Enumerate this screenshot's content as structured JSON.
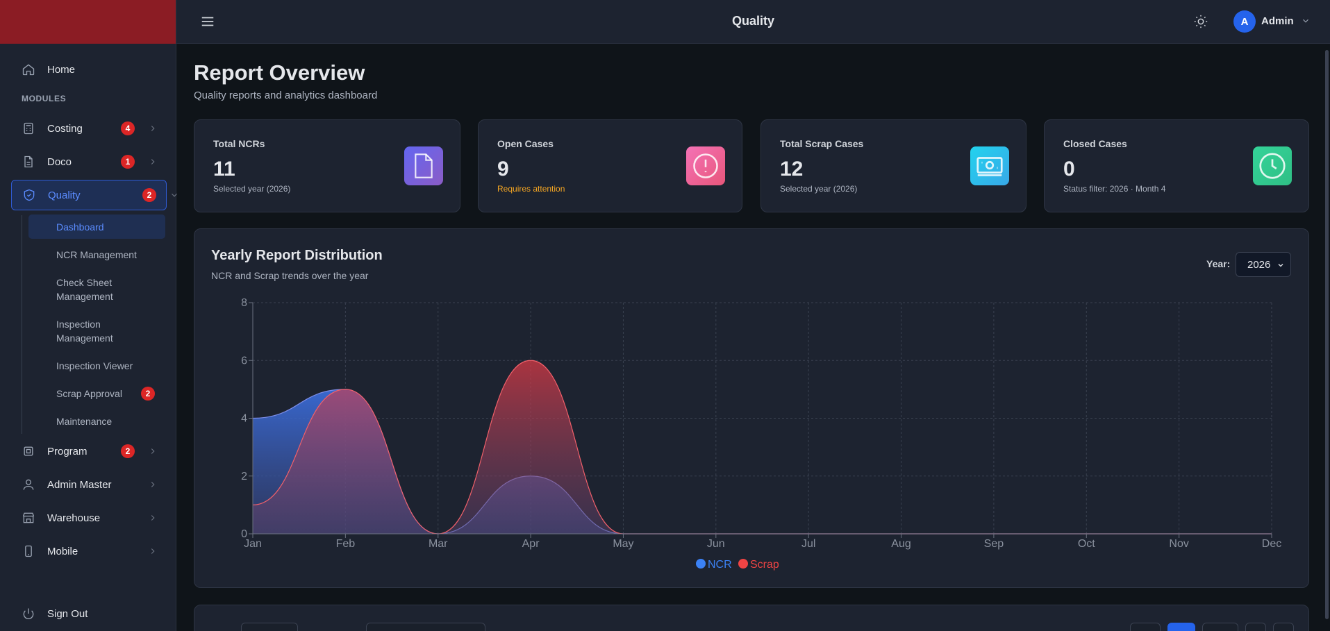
{
  "header": {
    "title": "Quality",
    "user_initial": "A",
    "user_name": "Admin"
  },
  "sidebar": {
    "home": "Home",
    "section": "MODULES",
    "modules": [
      {
        "label": "Costing",
        "badge": "4",
        "icon": "calculator-icon"
      },
      {
        "label": "Doco",
        "badge": "1",
        "icon": "document-icon"
      },
      {
        "label": "Quality",
        "badge": "2",
        "icon": "shield-check-icon"
      },
      {
        "label": "Program",
        "badge": "2",
        "icon": "chip-icon"
      },
      {
        "label": "Admin Master",
        "badge": "",
        "icon": "user-icon"
      },
      {
        "label": "Warehouse",
        "badge": "",
        "icon": "store-icon"
      },
      {
        "label": "Mobile",
        "badge": "",
        "icon": "mobile-icon"
      }
    ],
    "quality_sub": [
      {
        "label": "Dashboard"
      },
      {
        "label": "NCR Management"
      },
      {
        "label": "Check Sheet Management"
      },
      {
        "label": "Inspection Management"
      },
      {
        "label": "Inspection Viewer"
      },
      {
        "label": "Scrap Approval",
        "badge": "2"
      },
      {
        "label": "Maintenance"
      }
    ],
    "sign_out": "Sign Out"
  },
  "page": {
    "title": "Report Overview",
    "subtitle": "Quality reports and analytics dashboard"
  },
  "cards": [
    {
      "title": "Total NCRs",
      "value": "11",
      "note": "Selected year (2026)",
      "color": "#7c6fd6",
      "icon": "document-icon"
    },
    {
      "title": "Open Cases",
      "value": "9",
      "note": "Requires attention",
      "color": "#ec6a9b",
      "icon": "alert-circle-icon"
    },
    {
      "title": "Total Scrap Cases",
      "value": "12",
      "note": "Selected year (2026)",
      "color": "#2fc3ea",
      "icon": "banknote-icon"
    },
    {
      "title": "Closed Cases",
      "value": "0",
      "note": "Status filter: 2026 · Month 4",
      "color": "#34d399",
      "icon": "clock-icon"
    }
  ],
  "chart_panel": {
    "title": "Yearly Report Distribution",
    "subtitle": "NCR and Scrap trends over the year",
    "year_label": "Year:",
    "year_value": "2026"
  },
  "chart_data": {
    "type": "area",
    "x": [
      "Jan",
      "Feb",
      "Mar",
      "Apr",
      "May",
      "Jun",
      "Jul",
      "Aug",
      "Sep",
      "Oct",
      "Nov",
      "Dec"
    ],
    "ylim": [
      0,
      8
    ],
    "yticks": [
      0,
      2,
      4,
      6,
      8
    ],
    "grid": true,
    "legend": "bottom",
    "series": [
      {
        "name": "NCR",
        "values": [
          4,
          5,
          0,
          2,
          0,
          0,
          0,
          0,
          0,
          0,
          0,
          0
        ],
        "color": "#3b82f6"
      },
      {
        "name": "Scrap",
        "values": [
          1,
          5,
          0,
          6,
          0,
          0,
          0,
          0,
          0,
          0,
          0,
          0
        ],
        "color": "#ef4444"
      }
    ]
  }
}
